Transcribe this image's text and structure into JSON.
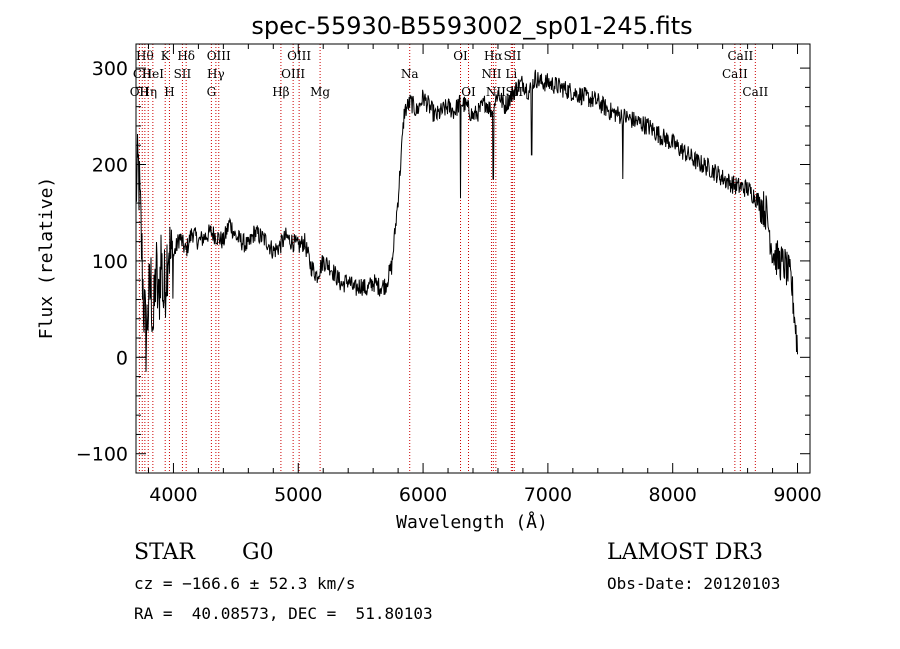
{
  "chart_data": {
    "type": "line",
    "title": "spec-55930-B5593002_sp01-245.fits",
    "xlabel": "Wavelength (Å)",
    "ylabel": "Flux (relative)",
    "xlim": [
      3700,
      9100
    ],
    "ylim": [
      -120,
      325
    ],
    "x_ticks": [
      4000,
      5000,
      6000,
      7000,
      8000,
      9000
    ],
    "y_ticks": [
      -100,
      0,
      100,
      200,
      300
    ],
    "grid": false,
    "series": [
      {
        "x": [
          3700,
          3720,
          3740,
          3760,
          3780,
          3800,
          3820,
          3840,
          3860,
          3880,
          3900,
          3920,
          3940,
          3960,
          3980,
          4000,
          4050,
          4100,
          4150,
          4200,
          4250,
          4300,
          4350,
          4400,
          4450,
          4500,
          4550,
          4600,
          4650,
          4700,
          4750,
          4800,
          4850,
          4900,
          4950,
          5000,
          5050,
          5100,
          5150,
          5200,
          5250,
          5300,
          5350,
          5400,
          5450,
          5500,
          5550,
          5600,
          5650,
          5700,
          5750,
          5800,
          5850,
          5900,
          5950,
          6000,
          6050,
          6100,
          6150,
          6200,
          6250,
          6300,
          6350,
          6400,
          6450,
          6500,
          6550,
          6600,
          6650,
          6700,
          6750,
          6800,
          6850,
          6900,
          6950,
          7000,
          7100,
          7200,
          7300,
          7400,
          7500,
          7600,
          7700,
          7800,
          7900,
          8000,
          8100,
          8200,
          8300,
          8400,
          8500,
          8600,
          8650,
          8700,
          8750,
          8800,
          8850,
          8900,
          8950,
          9000
        ],
        "y": [
          175,
          195,
          130,
          60,
          20,
          55,
          75,
          30,
          95,
          50,
          110,
          60,
          90,
          120,
          100,
          105,
          125,
          110,
          130,
          120,
          125,
          130,
          125,
          120,
          140,
          125,
          120,
          115,
          130,
          125,
          120,
          110,
          115,
          125,
          120,
          115,
          120,
          95,
          85,
          100,
          95,
          85,
          75,
          80,
          70,
          75,
          70,
          78,
          73,
          75,
          95,
          165,
          255,
          265,
          255,
          270,
          260,
          250,
          255,
          260,
          255,
          265,
          260,
          250,
          255,
          265,
          255,
          275,
          260,
          270,
          280,
          285,
          275,
          290,
          285,
          285,
          280,
          275,
          270,
          265,
          255,
          250,
          245,
          240,
          230,
          222,
          212,
          202,
          196,
          186,
          178,
          175,
          168,
          160,
          150,
          110,
          100,
          95,
          80,
          10
        ]
      }
    ],
    "line_markers": [
      {
        "w": 3727,
        "label": "OII",
        "row": 2
      },
      {
        "w": 3750,
        "label": "CII",
        "row": 1
      },
      {
        "w": 3771,
        "label": "Hθ",
        "row": 0
      },
      {
        "w": 3798,
        "label": "Hη",
        "row": 2
      },
      {
        "w": 3835,
        "label": "HeI",
        "row": 1
      },
      {
        "w": 3934,
        "label": "K",
        "row": 0
      },
      {
        "w": 3968,
        "label": "H",
        "row": 2
      },
      {
        "w": 4072,
        "label": "SII",
        "row": 1
      },
      {
        "w": 4102,
        "label": "Hδ",
        "row": 0
      },
      {
        "w": 4304,
        "label": "G",
        "row": 2
      },
      {
        "w": 4340,
        "label": "Hγ",
        "row": 1
      },
      {
        "w": 4363,
        "label": "OIII",
        "row": 0
      },
      {
        "w": 4861,
        "label": "Hβ",
        "row": 2
      },
      {
        "w": 4959,
        "label": "OIII",
        "row": 1
      },
      {
        "w": 5007,
        "label": "OIII",
        "row": 0
      },
      {
        "w": 5175,
        "label": "Mg",
        "row": 2
      },
      {
        "w": 5893,
        "label": "Na",
        "row": 1
      },
      {
        "w": 6300,
        "label": "OI",
        "row": 0
      },
      {
        "w": 6364,
        "label": "OI",
        "row": 2
      },
      {
        "w": 6548,
        "label": "NII",
        "row": 1
      },
      {
        "w": 6563,
        "label": "Hα",
        "row": 0
      },
      {
        "w": 6583,
        "label": "NII",
        "row": 2
      },
      {
        "w": 6707,
        "label": "Li",
        "row": 1
      },
      {
        "w": 6716,
        "label": "SII",
        "row": 0
      },
      {
        "w": 6731,
        "label": "SII",
        "row": 2
      },
      {
        "w": 8498,
        "label": "CaII",
        "row": 1
      },
      {
        "w": 8542,
        "label": "CaII",
        "row": 0
      },
      {
        "w": 8662,
        "label": "CaII",
        "row": 2
      }
    ]
  },
  "info": {
    "class": "STAR",
    "subclass": "G0",
    "survey": "LAMOST DR3",
    "cz": "cz = −166.6 ± 52.3 km/s",
    "obs_date": "Obs-Date: 20120103",
    "coords": "RA =  40.08573, DEC =  51.80103"
  },
  "colors": {
    "spectrum": "#000000",
    "marker": "#cc0000"
  }
}
